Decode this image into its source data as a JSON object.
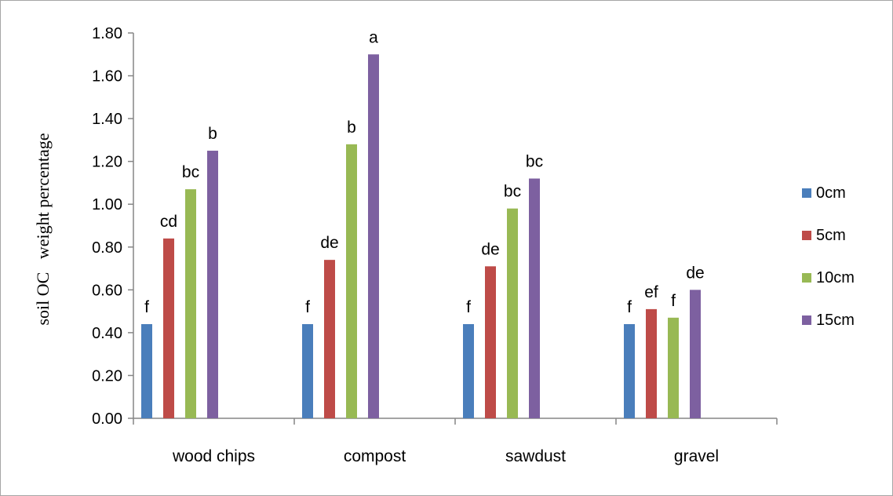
{
  "chart_data": {
    "type": "bar",
    "title": "",
    "xlabel": "",
    "ylabel": "soil OC   weight percentage",
    "ylim": [
      0,
      1.8
    ],
    "yticks": [
      "0.00",
      "0.20",
      "0.40",
      "0.60",
      "0.80",
      "1.00",
      "1.20",
      "1.40",
      "1.60",
      "1.80"
    ],
    "categories": [
      "wood chips",
      "compost",
      "sawdust",
      "gravel"
    ],
    "grid": false,
    "legend_position": "right",
    "series": [
      {
        "name": "0cm",
        "color": "#4a7ebb",
        "values": [
          0.44,
          0.44,
          0.44,
          0.44
        ],
        "labels": [
          "f",
          "f",
          "f",
          "f"
        ]
      },
      {
        "name": "5cm",
        "color": "#be4b48",
        "values": [
          0.84,
          0.74,
          0.71,
          0.51
        ],
        "labels": [
          "cd",
          "de",
          "de",
          "ef"
        ]
      },
      {
        "name": "10cm",
        "color": "#98b954",
        "values": [
          1.07,
          1.28,
          0.98,
          0.47
        ],
        "labels": [
          "bc",
          "b",
          "bc",
          "f"
        ]
      },
      {
        "name": "15cm",
        "color": "#7d60a0",
        "values": [
          1.25,
          1.7,
          1.12,
          0.6
        ],
        "labels": [
          "b",
          "a",
          "bc",
          "de"
        ]
      }
    ]
  }
}
